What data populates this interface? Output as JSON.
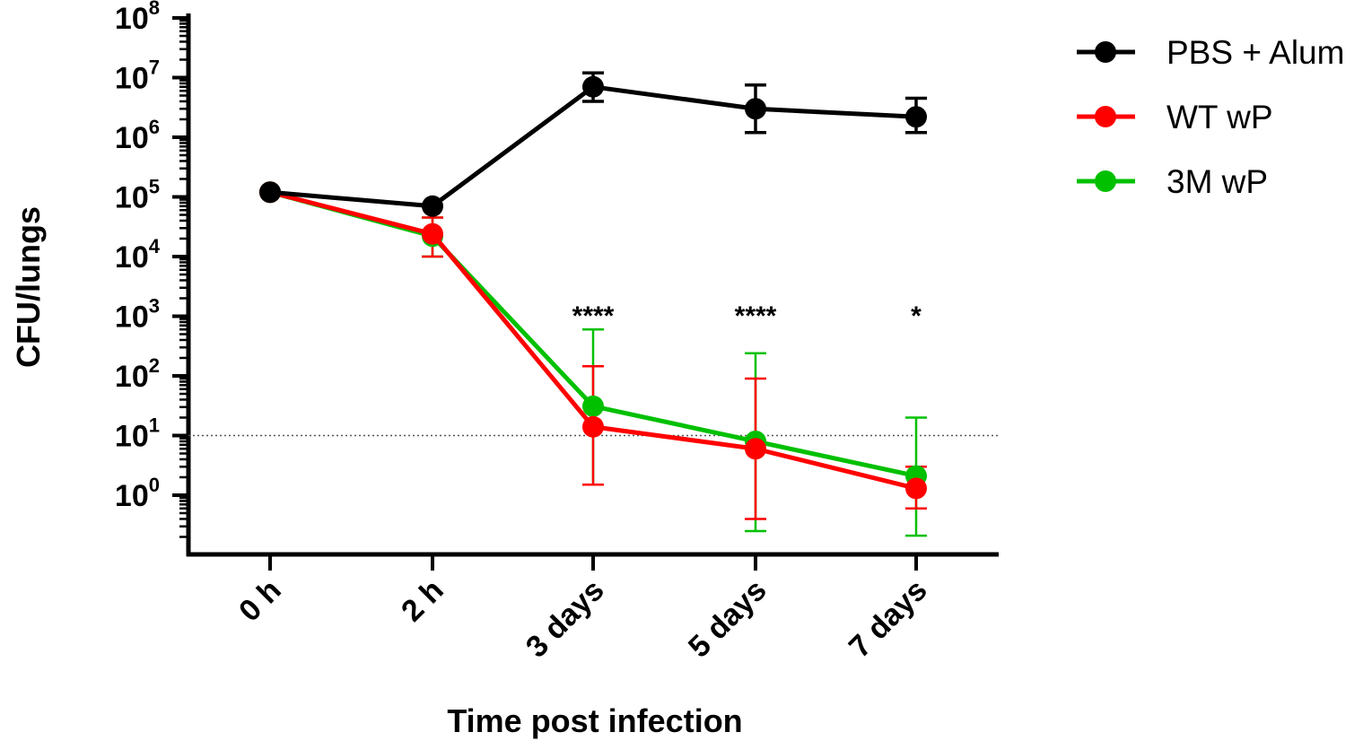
{
  "chart_data": {
    "type": "line",
    "title": "",
    "xlabel": "Time post infection",
    "ylabel": "CFU/lungs",
    "yscale": "log",
    "ylim": [
      0.1,
      100000000
    ],
    "y_ticks": [
      {
        "base": "10",
        "exp": "0",
        "value": 1
      },
      {
        "base": "10",
        "exp": "1",
        "value": 10
      },
      {
        "base": "10",
        "exp": "2",
        "value": 100
      },
      {
        "base": "10",
        "exp": "3",
        "value": 1000
      },
      {
        "base": "10",
        "exp": "4",
        "value": 10000
      },
      {
        "base": "10",
        "exp": "5",
        "value": 100000
      },
      {
        "base": "10",
        "exp": "6",
        "value": 1000000
      },
      {
        "base": "10",
        "exp": "7",
        "value": 10000000
      },
      {
        "base": "10",
        "exp": "8",
        "value": 100000000
      }
    ],
    "categories": [
      "0 h",
      "2 h",
      "3 days",
      "5 days",
      "7 days"
    ],
    "reference_line": {
      "value": 10,
      "style": "dotted"
    },
    "series": [
      {
        "name": "PBS + Alum",
        "color": "#000000",
        "values": [
          120000,
          70000,
          7000000,
          3000000,
          2200000
        ],
        "err_low": [
          null,
          null,
          4000000,
          1200000,
          1200000
        ],
        "err_high": [
          null,
          null,
          12000000,
          7500000,
          4500000
        ]
      },
      {
        "name": "3M wP",
        "color": "#00c000",
        "values": [
          120000,
          22000,
          31,
          8,
          2.1
        ],
        "err_low": [
          null,
          10000,
          1.5,
          0.25,
          0.21
        ],
        "err_high": [
          null,
          45000,
          600,
          240,
          20
        ]
      },
      {
        "name": "WT wP",
        "color": "#ff0000",
        "values": [
          120000,
          24000,
          14,
          6,
          1.3
        ],
        "err_low": [
          null,
          10000,
          1.5,
          0.4,
          0.6
        ],
        "err_high": [
          null,
          45000,
          145,
          90,
          3
        ]
      }
    ],
    "legend": {
      "placement": "top-right",
      "order": [
        "PBS + Alum",
        "WT wP",
        "3M wP"
      ]
    },
    "annotations": [
      {
        "category": "3 days",
        "text": "****"
      },
      {
        "category": "5 days",
        "text": "****"
      },
      {
        "category": "7 days",
        "text": "*"
      }
    ]
  }
}
